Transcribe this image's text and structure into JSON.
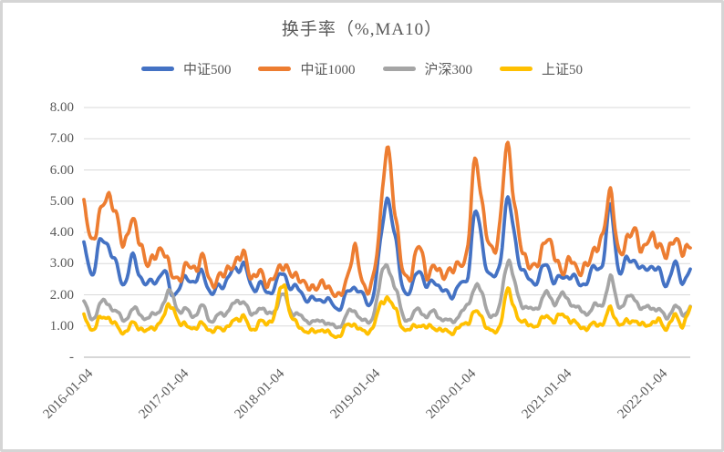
{
  "chart_data": {
    "type": "line",
    "title": "换手率（%,MA10）",
    "ylabel": "",
    "xlabel": "",
    "ylim": [
      0,
      8
    ],
    "y_tick_step": 1.0,
    "grid": "horizontal",
    "legend_position": "top",
    "y_tick_labels": [
      "8.00",
      "7.00",
      "6.00",
      "5.00",
      "4.00",
      "3.00",
      "2.00",
      "1.00",
      "-"
    ],
    "x_tick_labels": [
      "2016-01-04",
      "2017-01-04",
      "2018-01-04",
      "2019-01-04",
      "2020-01-04",
      "2021-01-04",
      "2022-01-04"
    ],
    "x_start": "2016-01",
    "x_sampling": "monthly estimates of the MA10 daily turnover curve, 2016-01 through 2022-05",
    "colors": {
      "grid": "#D9D9D9",
      "axis": "#BFBFBF",
      "text": "#595959"
    },
    "series": [
      {
        "name": "中证500",
        "color": "#4472C4",
        "values": [
          3.5,
          2.75,
          3.55,
          3.7,
          2.9,
          2.4,
          3.1,
          2.7,
          2.3,
          2.5,
          2.7,
          2.1,
          2.2,
          2.6,
          2.4,
          2.7,
          2.0,
          2.3,
          2.5,
          2.8,
          3.0,
          2.2,
          2.4,
          2.0,
          2.4,
          2.6,
          2.3,
          2.1,
          1.9,
          1.8,
          1.9,
          1.7,
          1.6,
          2.0,
          2.3,
          1.9,
          1.8,
          3.2,
          5.2,
          3.7,
          2.3,
          2.1,
          2.9,
          2.2,
          2.5,
          2.1,
          2.0,
          2.3,
          2.5,
          4.6,
          3.5,
          2.6,
          2.8,
          5.0,
          3.8,
          2.8,
          2.4,
          2.6,
          2.9,
          2.5,
          2.5,
          2.7,
          2.3,
          2.5,
          2.8,
          3.1,
          4.7,
          2.9,
          3.0,
          3.2,
          2.7,
          3.0,
          2.7,
          2.4,
          2.9,
          2.5,
          2.75
        ]
      },
      {
        "name": "中证1000",
        "color": "#ED7D31",
        "values": [
          4.9,
          3.7,
          4.6,
          5.15,
          4.6,
          3.6,
          4.4,
          3.7,
          3.0,
          3.3,
          3.4,
          2.7,
          2.5,
          3.0,
          2.8,
          3.2,
          2.3,
          2.6,
          2.8,
          3.0,
          3.35,
          2.5,
          2.8,
          2.3,
          2.7,
          2.9,
          2.7,
          2.5,
          2.3,
          2.2,
          2.4,
          2.1,
          2.0,
          2.5,
          3.5,
          2.3,
          2.3,
          4.0,
          6.7,
          4.6,
          2.8,
          2.6,
          3.65,
          2.6,
          2.95,
          2.6,
          2.8,
          3.0,
          3.3,
          6.3,
          4.7,
          3.5,
          3.9,
          6.8,
          4.8,
          3.4,
          2.9,
          3.1,
          3.8,
          3.3,
          2.7,
          3.2,
          2.7,
          3.0,
          3.4,
          3.9,
          5.25,
          3.4,
          3.7,
          4.1,
          3.4,
          3.9,
          3.6,
          3.3,
          3.8,
          3.4,
          3.6
        ]
      },
      {
        "name": "沪深300",
        "color": "#A5A5A5",
        "values": [
          1.7,
          1.25,
          1.65,
          1.75,
          1.45,
          1.2,
          1.5,
          1.4,
          1.25,
          1.4,
          1.75,
          2.05,
          1.45,
          1.5,
          1.35,
          1.6,
          1.15,
          1.35,
          1.5,
          1.7,
          1.85,
          1.3,
          1.65,
          1.35,
          1.6,
          1.95,
          1.5,
          1.3,
          1.2,
          1.1,
          1.2,
          1.0,
          1.0,
          1.35,
          1.5,
          1.15,
          1.2,
          2.2,
          3.0,
          2.2,
          1.35,
          1.25,
          1.55,
          1.3,
          1.45,
          1.2,
          1.15,
          1.35,
          1.6,
          2.3,
          1.9,
          1.35,
          1.5,
          3.1,
          2.3,
          1.7,
          1.5,
          1.7,
          2.0,
          1.8,
          1.95,
          1.8,
          1.5,
          1.45,
          1.6,
          1.75,
          2.45,
          1.7,
          1.8,
          1.95,
          1.5,
          1.65,
          1.5,
          1.3,
          1.6,
          1.4,
          1.6
        ]
      },
      {
        "name": "上证50",
        "color": "#FFC000",
        "values": [
          1.3,
          0.9,
          1.2,
          1.3,
          1.0,
          0.8,
          1.05,
          0.95,
          0.85,
          1.0,
          1.3,
          1.7,
          1.05,
          1.05,
          0.9,
          1.1,
          0.8,
          0.95,
          0.95,
          1.2,
          1.3,
          0.85,
          1.15,
          1.05,
          1.5,
          2.3,
          1.35,
          0.95,
          0.85,
          0.8,
          0.9,
          0.7,
          0.7,
          1.0,
          1.05,
          0.8,
          0.9,
          1.5,
          1.95,
          1.5,
          0.95,
          0.9,
          1.05,
          0.95,
          0.95,
          0.85,
          0.8,
          0.95,
          1.1,
          1.45,
          1.2,
          0.85,
          0.9,
          2.1,
          1.5,
          1.15,
          1.0,
          1.1,
          1.3,
          1.2,
          1.35,
          1.2,
          1.0,
          0.95,
          1.05,
          1.1,
          1.5,
          1.1,
          1.1,
          1.2,
          1.0,
          1.1,
          1.15,
          0.95,
          1.3,
          1.05,
          1.55
        ]
      }
    ]
  }
}
